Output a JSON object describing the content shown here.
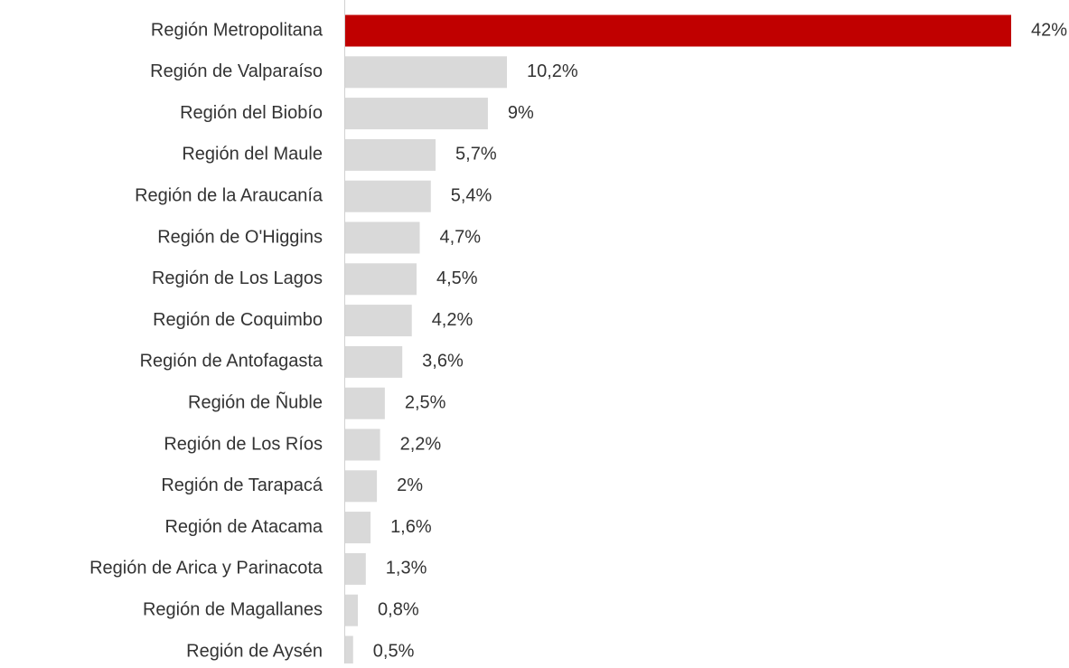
{
  "chart_data": {
    "type": "barh",
    "categories": [
      "Región Metropolitana",
      "Región de Valparaíso",
      "Región del Biobío",
      "Región del Maule",
      "Región de la Araucanía",
      "Región de O'Higgins",
      "Región de Los Lagos",
      "Región de Coquimbo",
      "Región de Antofagasta",
      "Región de Ñuble",
      "Región de Los Ríos",
      "Región de Tarapacá",
      "Región de Atacama",
      "Región de Arica y Parinacota",
      "Región de Magallanes",
      "Región de Aysén"
    ],
    "values": [
      42,
      10.2,
      9,
      5.7,
      5.4,
      4.7,
      4.5,
      4.2,
      3.6,
      2.5,
      2.2,
      2,
      1.6,
      1.3,
      0.8,
      0.5
    ],
    "value_labels": [
      "42%",
      "10,2%",
      "9%",
      "5,7%",
      "5,4%",
      "4,7%",
      "4,5%",
      "4,2%",
      "3,6%",
      "2,5%",
      "2,2%",
      "2%",
      "1,6%",
      "1,3%",
      "0,8%",
      "0,5%"
    ],
    "colors": [
      "#c00000",
      "#d9d9d9",
      "#d9d9d9",
      "#d9d9d9",
      "#d9d9d9",
      "#d9d9d9",
      "#d9d9d9",
      "#d9d9d9",
      "#d9d9d9",
      "#d9d9d9",
      "#d9d9d9",
      "#d9d9d9",
      "#d9d9d9",
      "#d9d9d9",
      "#d9d9d9",
      "#d9d9d9"
    ]
  }
}
